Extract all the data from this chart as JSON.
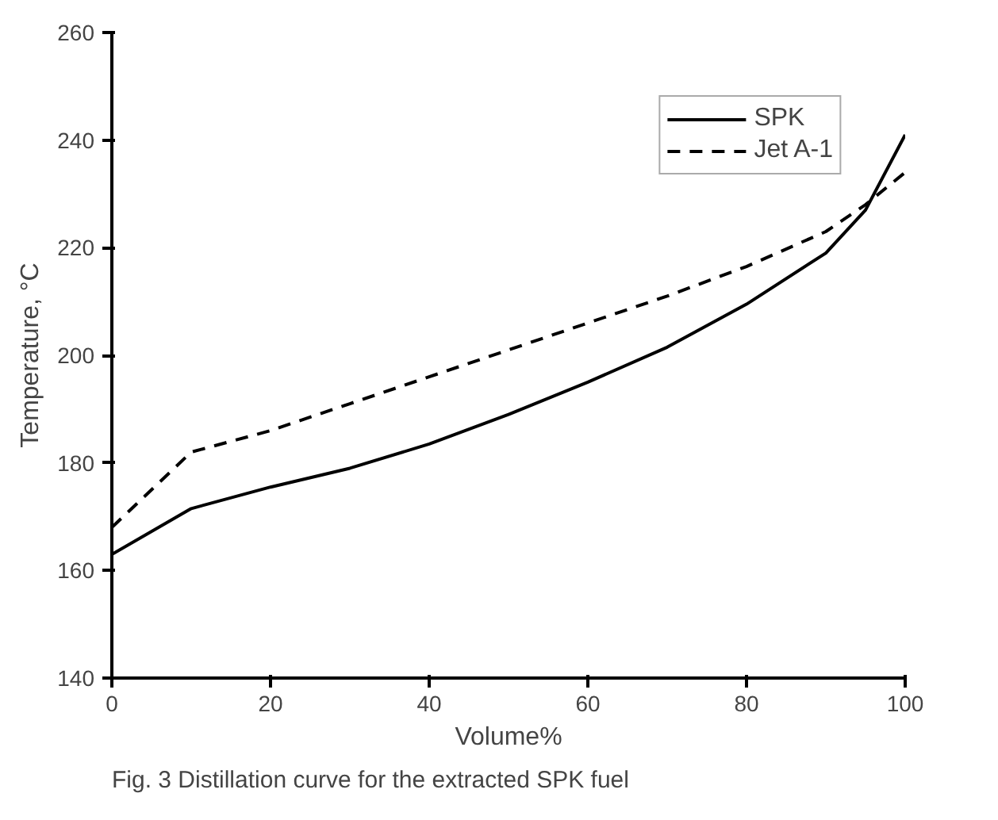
{
  "chart_data": {
    "type": "line",
    "xlabel": "Volume%",
    "ylabel": "Temperature, °C",
    "x": [
      0,
      10,
      20,
      30,
      40,
      50,
      60,
      70,
      80,
      90,
      95,
      100
    ],
    "series": [
      {
        "name": "SPK",
        "color": "#000000",
        "line_style": "solid",
        "values": [
          163,
          171.5,
          175.5,
          179,
          183.5,
          189,
          195,
          201.5,
          209.5,
          219,
          227,
          241
        ]
      },
      {
        "name": "Jet A-1",
        "color": "#000000",
        "line_style": "dashed",
        "values": [
          168,
          182,
          186,
          191,
          196,
          201,
          206,
          211,
          216.5,
          223,
          228,
          234
        ]
      }
    ],
    "xlim": [
      0,
      100
    ],
    "ylim": [
      140,
      260
    ],
    "xticks": [
      0,
      20,
      40,
      60,
      80,
      100
    ],
    "yticks": [
      140,
      160,
      180,
      200,
      220,
      240,
      260
    ],
    "grid": false,
    "legend": "top right",
    "marker": "none",
    "annotations": [
      "Fig. 3 Distillation curve for the extracted SPK fuel"
    ]
  }
}
